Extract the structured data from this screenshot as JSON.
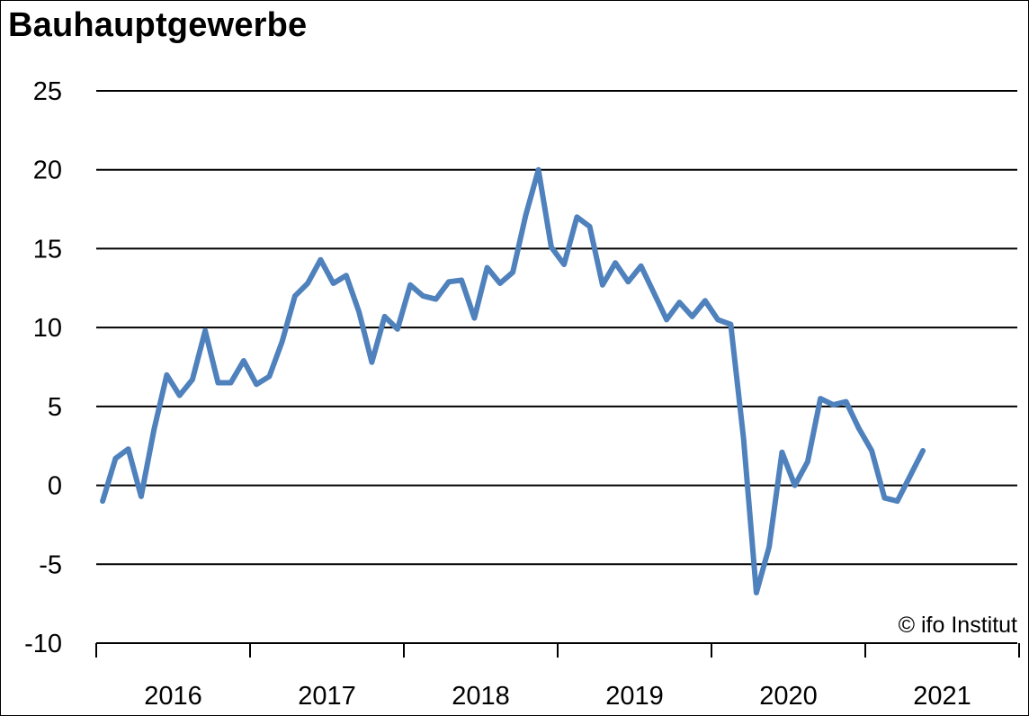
{
  "chart_data": {
    "type": "line",
    "title": "Bauhauptgewerbe",
    "xlabel": "",
    "ylabel": "",
    "ylim": [
      -10,
      25
    ],
    "y_ticks": [
      "25",
      "20",
      "15",
      "10",
      "5",
      "0",
      "-5",
      "-10"
    ],
    "x_tick_labels": [
      "2016",
      "2017",
      "2018",
      "2019",
      "2020",
      "2021"
    ],
    "grid": "horizontal",
    "line_color": "#4F81BD",
    "annotation": "© ifo Institut",
    "series": [
      {
        "values": [
          -1.0,
          1.7,
          2.3,
          -0.7,
          3.5,
          7.0,
          5.7,
          6.7,
          9.8,
          6.5,
          6.5,
          7.9,
          6.4,
          6.9,
          9.1,
          12.0,
          12.8,
          14.3,
          12.8,
          13.3,
          11.0,
          7.8,
          10.7,
          9.9,
          12.7,
          12.0,
          11.8,
          12.9,
          13.0,
          10.6,
          13.8,
          12.8,
          13.5,
          17.1,
          20.0,
          15.1,
          14.0,
          17.0,
          16.4,
          12.7,
          14.1,
          12.9,
          13.9,
          12.2,
          10.5,
          11.6,
          10.7,
          11.7,
          10.5,
          10.2,
          3.0,
          -6.8,
          -3.9,
          2.1,
          0.0,
          1.5,
          5.5,
          5.1,
          5.3,
          3.6,
          2.2,
          -0.8,
          -1.0,
          0.6,
          2.2
        ]
      }
    ]
  }
}
